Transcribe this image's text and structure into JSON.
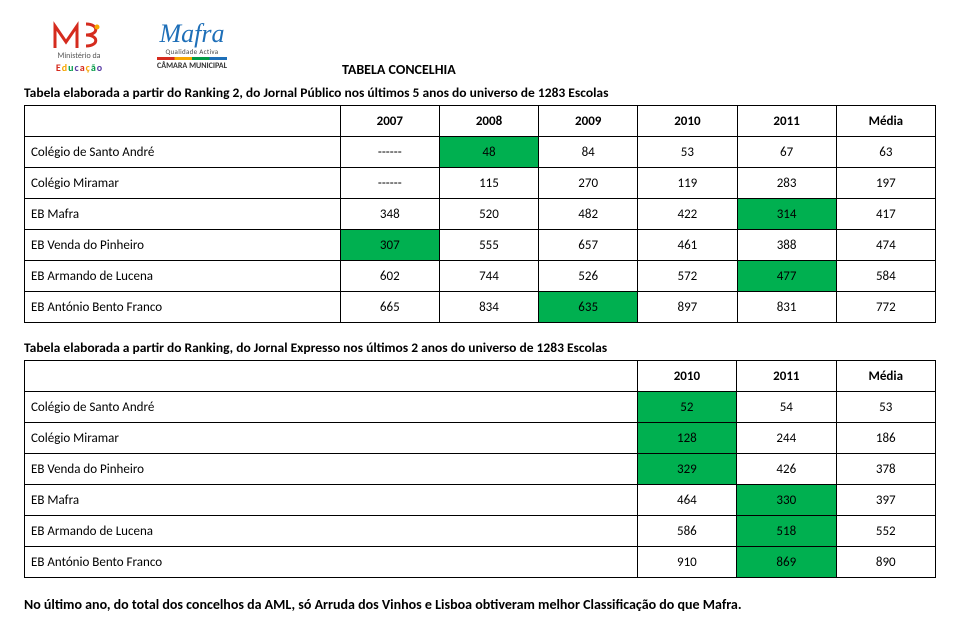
{
  "doc_title": "TABELA CONCELHIA",
  "table1": {
    "title": "Tabela elaborada a partir do Ranking 2, do Jornal Público nos últimos 5 anos do universo de 1283 Escolas",
    "headers": [
      "2007",
      "2008",
      "2009",
      "2010",
      "2011",
      "Média"
    ],
    "rows": [
      {
        "label": "Colégio de Santo André",
        "cells": [
          {
            "v": "------"
          },
          {
            "v": "48",
            "hl": true
          },
          {
            "v": "84"
          },
          {
            "v": "53"
          },
          {
            "v": "67"
          },
          {
            "v": "63"
          }
        ]
      },
      {
        "label": "Colégio Miramar",
        "cells": [
          {
            "v": "------"
          },
          {
            "v": "115"
          },
          {
            "v": "270"
          },
          {
            "v": "119"
          },
          {
            "v": "283"
          },
          {
            "v": "197"
          }
        ]
      },
      {
        "label": "EB Mafra",
        "cells": [
          {
            "v": "348"
          },
          {
            "v": "520"
          },
          {
            "v": "482"
          },
          {
            "v": "422"
          },
          {
            "v": "314",
            "hl": true
          },
          {
            "v": "417"
          }
        ]
      },
      {
        "label": "EB Venda do Pinheiro",
        "cells": [
          {
            "v": "307",
            "hl": true
          },
          {
            "v": "555"
          },
          {
            "v": "657"
          },
          {
            "v": "461"
          },
          {
            "v": "388"
          },
          {
            "v": "474"
          }
        ]
      },
      {
        "label": "EB Armando de Lucena",
        "cells": [
          {
            "v": "602"
          },
          {
            "v": "744"
          },
          {
            "v": "526"
          },
          {
            "v": "572"
          },
          {
            "v": "477",
            "hl": true
          },
          {
            "v": "584"
          }
        ]
      },
      {
        "label": "EB António Bento Franco",
        "cells": [
          {
            "v": "665"
          },
          {
            "v": "834"
          },
          {
            "v": "635",
            "hl": true
          },
          {
            "v": "897"
          },
          {
            "v": "831"
          },
          {
            "v": "772"
          }
        ]
      }
    ]
  },
  "table2": {
    "title": "Tabela elaborada a partir do Ranking, do Jornal Expresso nos últimos 2 anos do universo de 1283 Escolas",
    "headers": [
      "2010",
      "2011",
      "Média"
    ],
    "rows": [
      {
        "label": "Colégio de Santo André",
        "cells": [
          {
            "v": "52",
            "hl": true
          },
          {
            "v": "54"
          },
          {
            "v": "53"
          }
        ]
      },
      {
        "label": "Colégio Miramar",
        "cells": [
          {
            "v": "128",
            "hl": true
          },
          {
            "v": "244"
          },
          {
            "v": "186"
          }
        ]
      },
      {
        "label": "EB Venda do Pinheiro",
        "cells": [
          {
            "v": "329",
            "hl": true
          },
          {
            "v": "426"
          },
          {
            "v": "378"
          }
        ]
      },
      {
        "label": "EB Mafra",
        "cells": [
          {
            "v": "464"
          },
          {
            "v": "330",
            "hl": true
          },
          {
            "v": "397"
          }
        ]
      },
      {
        "label": "EB Armando de Lucena",
        "cells": [
          {
            "v": "586"
          },
          {
            "v": "518",
            "hl": true
          },
          {
            "v": "552"
          }
        ]
      },
      {
        "label": "EB António Bento Franco",
        "cells": [
          {
            "v": "910"
          },
          {
            "v": "869",
            "hl": true
          },
          {
            "v": "890"
          }
        ]
      }
    ]
  },
  "footnote": "No último ano, do total dos concelhos da AML, só Arruda dos Vinhos e Lisboa obtiveram melhor Classificação do que Mafra.",
  "colors": {
    "highlight": "#00b050",
    "border": "#000000",
    "text": "#000000",
    "bg": "#ffffff"
  },
  "logos": {
    "me_label": "Educação",
    "me_sub": "Ministério da",
    "mafra_word": "Mafra",
    "mafra_tag": "Qualidade Activa",
    "mafra_sub": "CÂMARA MUNICIPAL"
  }
}
